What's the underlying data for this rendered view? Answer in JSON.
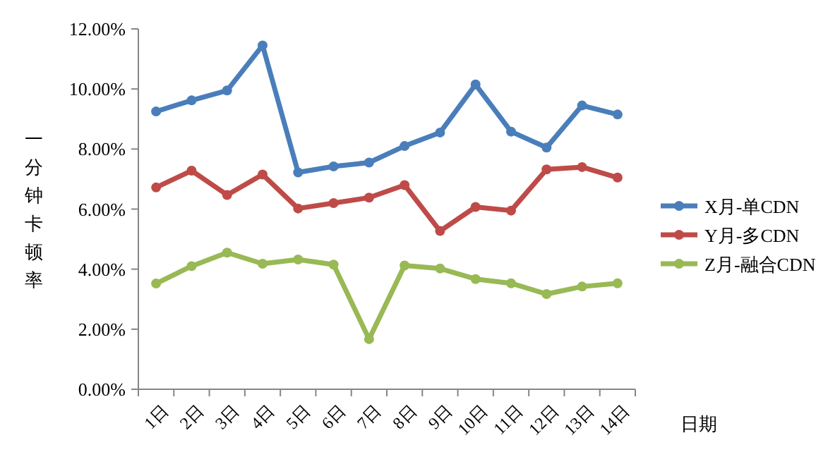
{
  "chart_data": {
    "type": "line",
    "ylabel": "一分钟卡顿率",
    "xlabel": "日期",
    "categories": [
      "1日",
      "2日",
      "3日",
      "4日",
      "5日",
      "6日",
      "7日",
      "8日",
      "9日",
      "10日",
      "11日",
      "12日",
      "13日",
      "14日"
    ],
    "series": [
      {
        "name": "X月-单CDN",
        "color": "#4a7ebb",
        "values": [
          9.25,
          9.62,
          9.95,
          11.45,
          7.22,
          7.42,
          7.55,
          8.1,
          8.55,
          10.15,
          8.58,
          8.05,
          9.45,
          9.15
        ]
      },
      {
        "name": "Y月-多CDN",
        "color": "#be4b48",
        "values": [
          6.72,
          7.28,
          6.47,
          7.15,
          6.02,
          6.2,
          6.38,
          6.8,
          5.27,
          6.07,
          5.95,
          7.32,
          7.4,
          7.05
        ]
      },
      {
        "name": "Z月-融合CDN",
        "color": "#98b954",
        "values": [
          3.52,
          4.1,
          4.55,
          4.18,
          4.32,
          4.15,
          1.67,
          4.12,
          4.02,
          3.67,
          3.53,
          3.17,
          3.42,
          3.53
        ]
      }
    ],
    "ylim": [
      0,
      12
    ],
    "yticks": [
      {
        "value": 0,
        "label": "0.00%"
      },
      {
        "value": 2,
        "label": "2.00%"
      },
      {
        "value": 4,
        "label": "4.00%"
      },
      {
        "value": 6,
        "label": "6.00%"
      },
      {
        "value": 8,
        "label": "8.00%"
      },
      {
        "value": 10,
        "label": "10.00%"
      },
      {
        "value": 12,
        "label": "12.00%"
      }
    ],
    "marker": "circle",
    "line_style": "solid",
    "grid": false,
    "legend": "right"
  }
}
